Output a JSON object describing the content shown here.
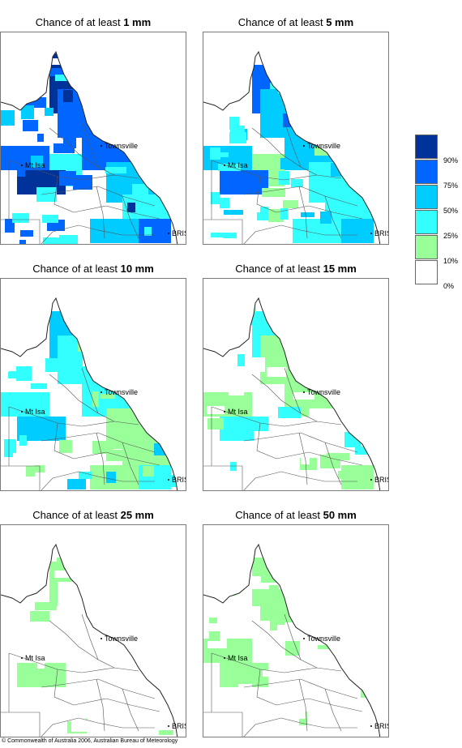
{
  "title_prefix": "Chance of at least",
  "panels": [
    {
      "threshold": "1 mm"
    },
    {
      "threshold": "5 mm"
    },
    {
      "threshold": "10 mm"
    },
    {
      "threshold": "15 mm"
    },
    {
      "threshold": "25 mm"
    },
    {
      "threshold": "50 mm"
    }
  ],
  "places": {
    "townsville": "Townsville",
    "mt_isa": "Mt Isa",
    "brisbane": "BRIS"
  },
  "legend": {
    "colors": [
      "#003399",
      "#0066ff",
      "#00ccff",
      "#33ffff",
      "#99ff99",
      "#ffffff"
    ],
    "labels": [
      "90%",
      "75%",
      "50%",
      "25%",
      "10%",
      "0%"
    ]
  },
  "copyright": "© Commonwealth of Australia 2006, Australian Bureau of Meteorology"
}
